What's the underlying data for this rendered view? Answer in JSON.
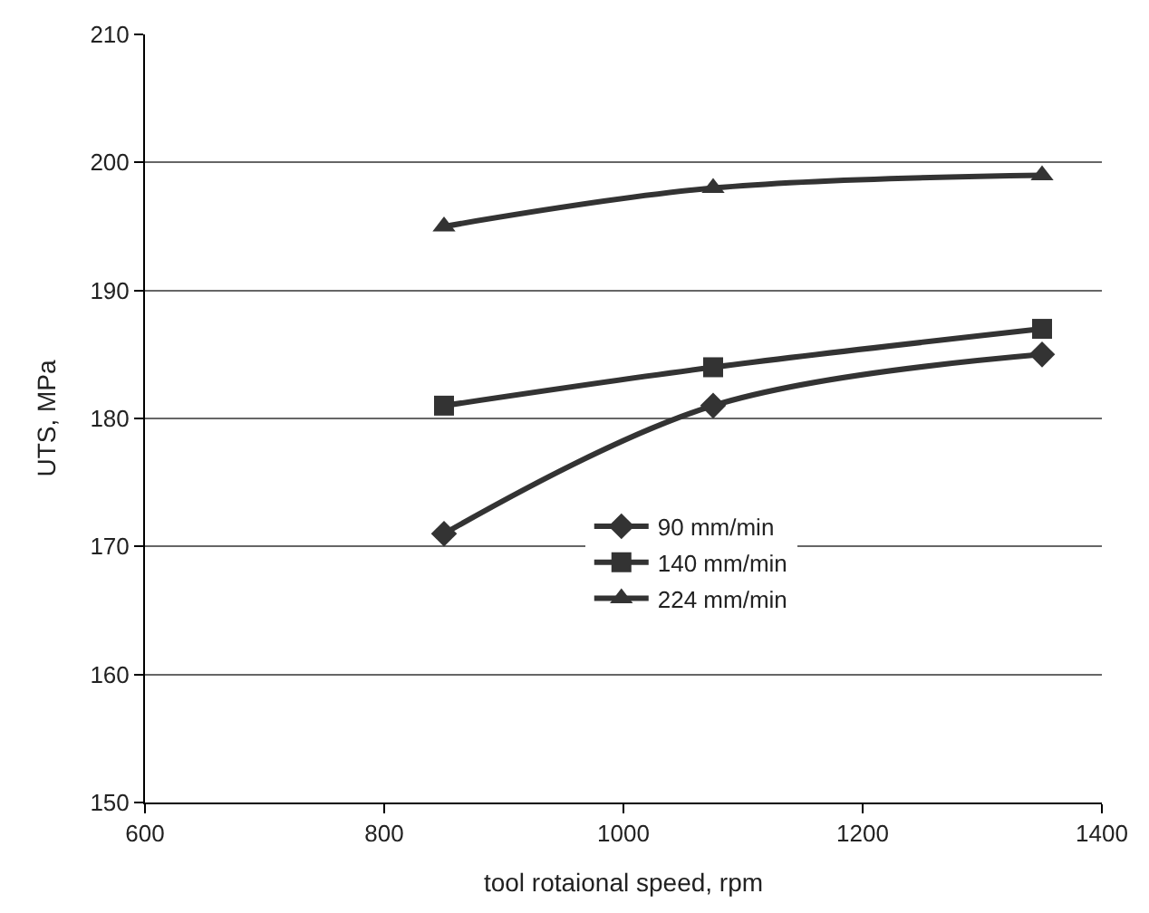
{
  "chart_data": {
    "type": "line",
    "xlabel": "tool rotaional speed, rpm",
    "ylabel": "UTS, MPa",
    "x": [
      850,
      1075,
      1350
    ],
    "series": [
      {
        "name": "90 mm/min",
        "color": "#333333",
        "marker": "diamond",
        "values": [
          171,
          181,
          185
        ]
      },
      {
        "name": "140 mm/min",
        "color": "#333333",
        "marker": "square",
        "values": [
          181,
          184,
          187
        ]
      },
      {
        "name": "224 mm/min",
        "color": "#333333",
        "marker": "triangle",
        "values": [
          195,
          198,
          199
        ]
      }
    ],
    "xlim": [
      600,
      1400
    ],
    "xticks": [
      600,
      800,
      1000,
      1200,
      1400
    ],
    "ylim": [
      150,
      210
    ],
    "yticks": [
      150,
      160,
      170,
      180,
      190,
      200,
      210
    ],
    "grid": "y",
    "legend": "center",
    "line_style": "solid"
  }
}
